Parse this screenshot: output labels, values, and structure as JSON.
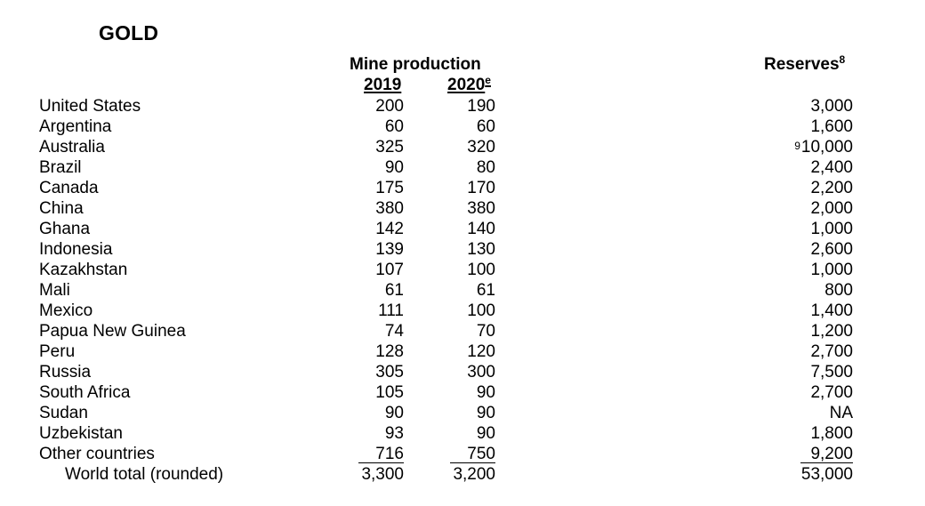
{
  "title": "GOLD",
  "headers": {
    "mine_production": "Mine production",
    "year_2019": "2019",
    "year_2020": "2020",
    "year_2020_note": "e",
    "reserves": "Reserves",
    "reserves_note": "8"
  },
  "rows": [
    {
      "country": "United States",
      "p2019": "200",
      "p2020": "190",
      "reserves": "3,000"
    },
    {
      "country": "Argentina",
      "p2019": "60",
      "p2020": "60",
      "reserves": "1,600"
    },
    {
      "country": "Australia",
      "p2019": "325",
      "p2020": "320",
      "reserves_note": "9",
      "reserves": "10,000"
    },
    {
      "country": "Brazil",
      "p2019": "90",
      "p2020": "80",
      "reserves": "2,400"
    },
    {
      "country": "Canada",
      "p2019": "175",
      "p2020": "170",
      "reserves": "2,200"
    },
    {
      "country": "China",
      "p2019": "380",
      "p2020": "380",
      "reserves": "2,000"
    },
    {
      "country": "Ghana",
      "p2019": "142",
      "p2020": "140",
      "reserves": "1,000"
    },
    {
      "country": "Indonesia",
      "p2019": "139",
      "p2020": "130",
      "reserves": "2,600"
    },
    {
      "country": "Kazakhstan",
      "p2019": "107",
      "p2020": "100",
      "reserves": "1,000"
    },
    {
      "country": "Mali",
      "p2019": "61",
      "p2020": "61",
      "reserves": "800"
    },
    {
      "country": "Mexico",
      "p2019": "111",
      "p2020": "100",
      "reserves": "1,400"
    },
    {
      "country": "Papua New Guinea",
      "p2019": "74",
      "p2020": "70",
      "reserves": "1,200"
    },
    {
      "country": "Peru",
      "p2019": "128",
      "p2020": "120",
      "reserves": "2,700"
    },
    {
      "country": "Russia",
      "p2019": "305",
      "p2020": "300",
      "reserves": "7,500"
    },
    {
      "country": "South Africa",
      "p2019": "105",
      "p2020": "90",
      "reserves": "2,700"
    },
    {
      "country": "Sudan",
      "p2019": "90",
      "p2020": "90",
      "reserves": "NA"
    },
    {
      "country": "Uzbekistan",
      "p2019": "93",
      "p2020": "90",
      "reserves": "1,800"
    },
    {
      "country": "Other countries",
      "p2019": "716",
      "p2020": "750",
      "reserves": "9,200"
    }
  ],
  "total": {
    "country": "World total (rounded)",
    "p2019": "3,300",
    "p2020": "3,200",
    "reserves": "53,000"
  }
}
